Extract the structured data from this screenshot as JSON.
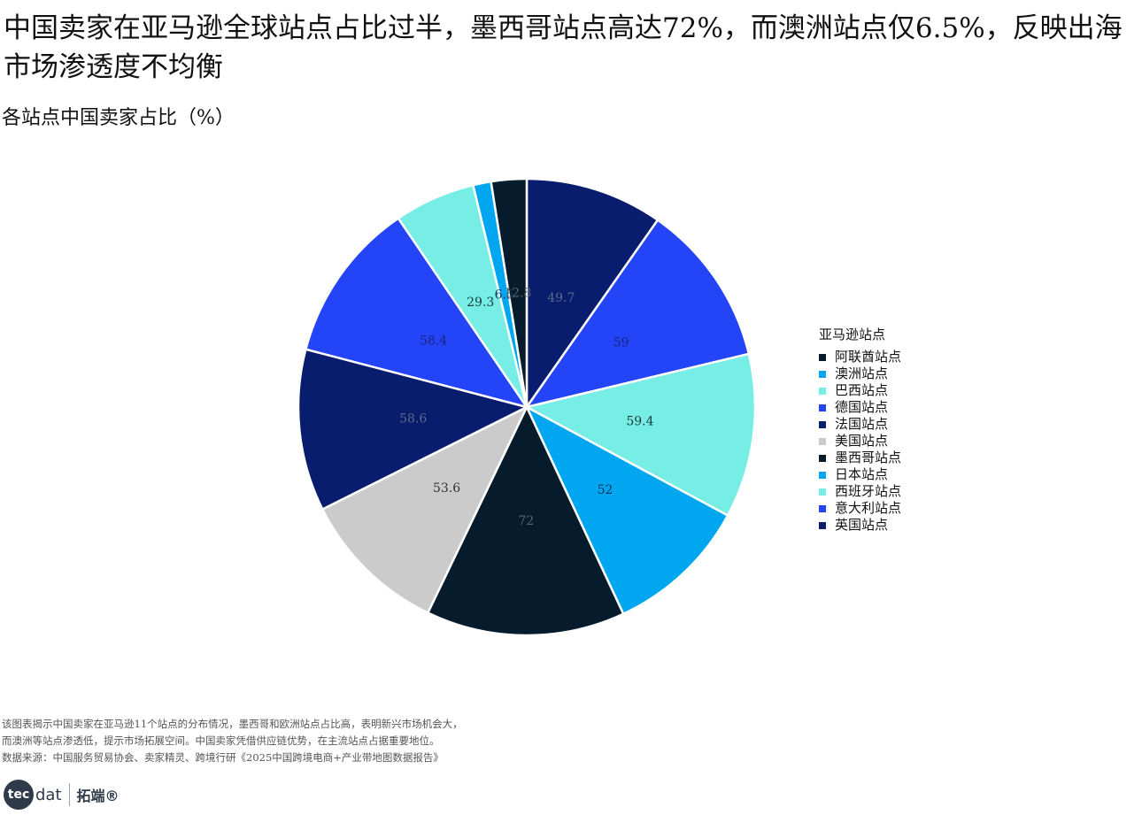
{
  "title": "中国卖家在亚马逊全球站点占比过半，墨西哥站点高达72%，而澳洲站点仅6.5%，反映出海市场渗透度不均衡",
  "subtitle": "各站点中国卖家占比（%）",
  "chart_data": {
    "type": "pie",
    "legend_title": "亚马逊站点",
    "legend_position": "right",
    "slices": [
      {
        "name": "英国站点",
        "value": 49.7,
        "color": "#081d6e"
      },
      {
        "name": "意大利站点",
        "value": 59,
        "color": "#2344f7"
      },
      {
        "name": "西班牙站点",
        "value": 59.4,
        "color": "#76ede5"
      },
      {
        "name": "日本站点",
        "value": 52,
        "color": "#00a6f0"
      },
      {
        "name": "墨西哥站点",
        "value": 72,
        "color": "#061c2c"
      },
      {
        "name": "美国站点",
        "value": 53.6,
        "color": "#cbcbcb"
      },
      {
        "name": "法国站点",
        "value": 58.6,
        "color": "#081d6e"
      },
      {
        "name": "德国站点",
        "value": 58.4,
        "color": "#2344f7"
      },
      {
        "name": "巴西站点",
        "value": 29.3,
        "color": "#76ede5"
      },
      {
        "name": "澳洲站点",
        "value": 6.5,
        "color": "#00a6f0"
      },
      {
        "name": "阿联酋站点",
        "value": 12.8,
        "color": "#061c2c"
      }
    ],
    "legend_order": [
      "阿联酋站点",
      "澳洲站点",
      "巴西站点",
      "德国站点",
      "法国站点",
      "美国站点",
      "墨西哥站点",
      "日本站点",
      "西班牙站点",
      "意大利站点",
      "英国站点"
    ],
    "data_label_colors": {
      "#081d6e": "#5e6a8a",
      "#2344f7": "#1a2580",
      "#76ede5": "#1a3a3a",
      "#00a6f0": "#0a3460",
      "#061c2c": "#56646f",
      "#cbcbcb": "#333333"
    }
  },
  "notes": [
    "该图表揭示中国卖家在亚马逊11个站点的分布情况，墨西哥和欧洲站点占比高，表明新兴市场机会大，",
    "而澳洲等站点渗透低，提示市场拓展空间。中国卖家凭借供应链优势，在主流站点占据重要地位。",
    "数据来源：中国服务贸易协会、卖家精灵、跨境行研《2025中国跨境电商+产业带地图数据报告》"
  ],
  "logo": {
    "mark": "tec",
    "word": "dat",
    "cn": "拓端®"
  }
}
